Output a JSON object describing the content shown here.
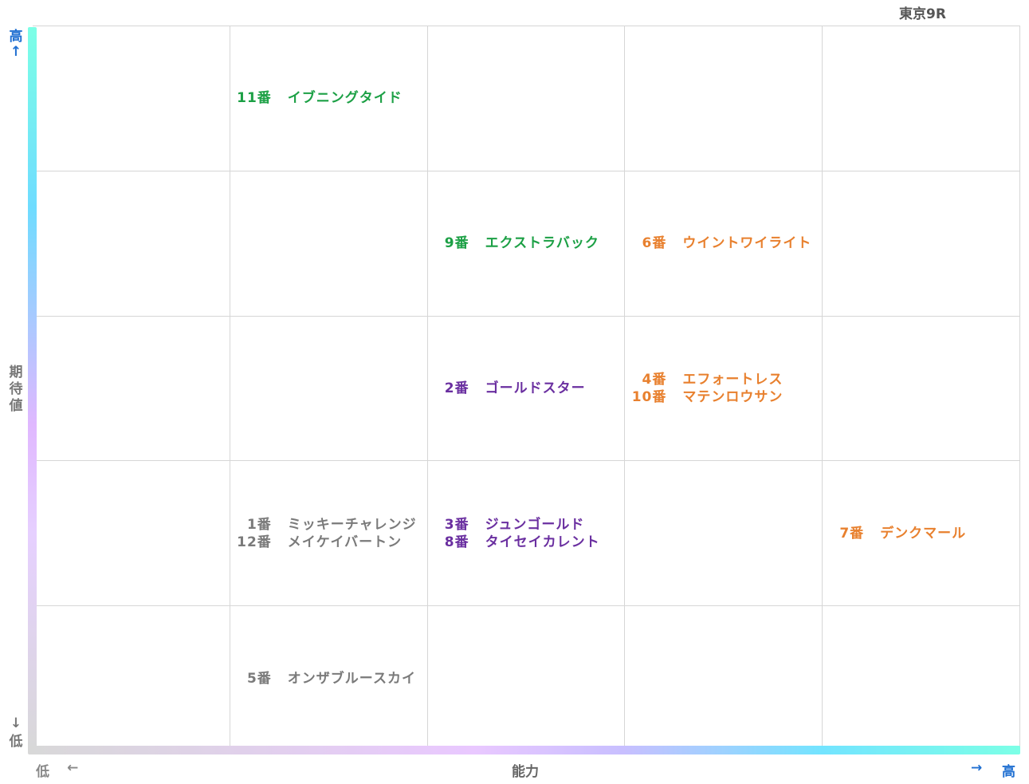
{
  "title": "東京9R",
  "y_axis": {
    "label_chars": [
      "期",
      "待",
      "値"
    ],
    "high": "高",
    "high_arrow": "↑",
    "low": "低",
    "low_arrow": "↓"
  },
  "x_axis": {
    "label": "能力",
    "low": "低",
    "low_arrow": "←",
    "high": "高",
    "high_arrow": "→"
  },
  "colors": {
    "green": "#1ca045",
    "orange": "#e8802e",
    "purple": "#6a2fa0",
    "gray": "#7a7a7a",
    "blue": "#1f6fd1"
  },
  "chart_data": {
    "type": "table",
    "x_levels": 5,
    "y_levels": 5,
    "entries": [
      {
        "num": "11番",
        "name": "イブニングタイド",
        "x": 2,
        "y": 5,
        "color": "green"
      },
      {
        "num": "9番",
        "name": "エクストラバック",
        "x": 3,
        "y": 4,
        "color": "green"
      },
      {
        "num": "6番",
        "name": "ウイントワイライト",
        "x": 4,
        "y": 4,
        "color": "orange"
      },
      {
        "num": "2番",
        "name": "ゴールドスター",
        "x": 3,
        "y": 3,
        "color": "purple"
      },
      {
        "num": "4番",
        "name": "エフォートレス",
        "x": 4,
        "y": 3,
        "color": "orange"
      },
      {
        "num": "10番",
        "name": "マテンロウサン",
        "x": 4,
        "y": 3,
        "color": "orange"
      },
      {
        "num": "1番",
        "name": "ミッキーチャレンジ",
        "x": 2,
        "y": 2,
        "color": "gray"
      },
      {
        "num": "12番",
        "name": "メイケイバートン",
        "x": 2,
        "y": 2,
        "color": "gray"
      },
      {
        "num": "3番",
        "name": "ジュンゴールド",
        "x": 3,
        "y": 2,
        "color": "purple"
      },
      {
        "num": "8番",
        "name": "タイセイカレント",
        "x": 3,
        "y": 2,
        "color": "purple"
      },
      {
        "num": "7番",
        "name": "デンクマール",
        "x": 5,
        "y": 2,
        "color": "orange"
      },
      {
        "num": "5番",
        "name": "オンザブルースカイ",
        "x": 2,
        "y": 1,
        "color": "gray"
      }
    ]
  }
}
